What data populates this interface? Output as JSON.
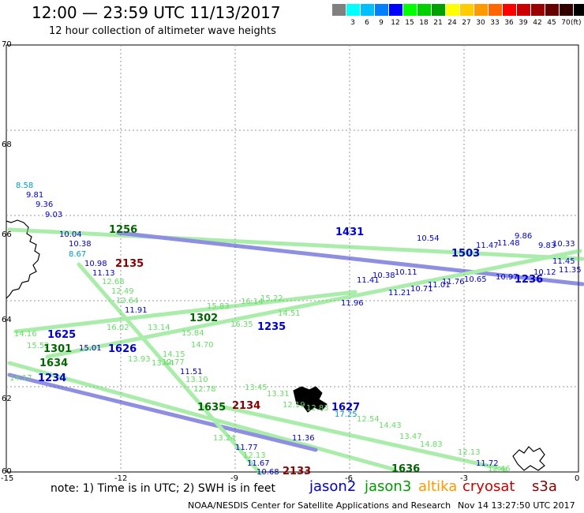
{
  "title": "12:00 — 23:59 UTC 11/13/2017",
  "subtitle": "12 hour collection of altimeter wave heights",
  "scale": {
    "colors": [
      "#808080",
      "#00ffff",
      "#00bfff",
      "#0080ff",
      "#0000ff",
      "#00ff00",
      "#00d000",
      "#00a000",
      "#ffff00",
      "#ffcc00",
      "#ff9900",
      "#ff6600",
      "#ff0000",
      "#cc0000",
      "#990000",
      "#660000",
      "#330000",
      "#000000"
    ],
    "labels": [
      "3",
      "6",
      "9",
      "12",
      "15",
      "18",
      "21",
      "24",
      "27",
      "30",
      "33",
      "36",
      "39",
      "42",
      "45",
      "70"
    ],
    "unit": "(ft)"
  },
  "axes": {
    "lon_ticks": [
      "-15",
      "-12",
      "-9",
      "-6",
      "-3",
      "0"
    ],
    "lat_ticks": [
      "70",
      "68",
      "66",
      "64",
      "62",
      "60"
    ]
  },
  "note": "note: 1) Time is in UTC; 2) SWH is in feet",
  "legend": [
    {
      "name": "jason2",
      "color": "#0000cc"
    },
    {
      "name": "jason3",
      "color": "#009900"
    },
    {
      "name": "altika",
      "color": "#ff9900"
    },
    {
      "name": "cryosat",
      "color": "#cc0000"
    },
    {
      "name": "s3a",
      "color": "#880000"
    }
  ],
  "footer": "NOAA/NESDIS Center for Satellite Applications and Research",
  "footer_time": "Nov 14 13:27:50 UTC 2017",
  "track_labels": [
    {
      "text": "1431",
      "color": "#0000cc"
    },
    {
      "text": "1503",
      "color": "#0000cc"
    },
    {
      "text": "1236",
      "color": "#0000cc"
    },
    {
      "text": "1235",
      "color": "#0000cc"
    },
    {
      "text": "1302",
      "color": "#006600"
    },
    {
      "text": "1625",
      "color": "#0000cc"
    },
    {
      "text": "1301",
      "color": "#006600"
    },
    {
      "text": "1626",
      "color": "#0000cc"
    },
    {
      "text": "1634",
      "color": "#006600"
    },
    {
      "text": "1234",
      "color": "#0000cc"
    },
    {
      "text": "1635",
      "color": "#006600"
    },
    {
      "text": "2134",
      "color": "#880000"
    },
    {
      "text": "1627",
      "color": "#0000cc"
    },
    {
      "text": "2135",
      "color": "#880000"
    },
    {
      "text": "2133",
      "color": "#880000"
    },
    {
      "text": "1636",
      "color": "#006600"
    },
    {
      "text": "1256",
      "color": "#006600"
    }
  ],
  "values": [
    {
      "text": "8.58",
      "color": "#0099cc"
    },
    {
      "text": "9.81",
      "color": "#0000cc"
    },
    {
      "text": "9.36",
      "color": "#0000cc"
    },
    {
      "text": "9.03",
      "color": "#0000cc"
    },
    {
      "text": "10.04",
      "color": "#0000cc"
    },
    {
      "text": "10.38",
      "color": "#0000cc"
    },
    {
      "text": "8.67",
      "color": "#0099cc"
    },
    {
      "text": "10.98",
      "color": "#0000cc"
    },
    {
      "text": "11.13",
      "color": "#0000cc"
    },
    {
      "text": "12.68",
      "color": "#66dd66"
    },
    {
      "text": "12.49",
      "color": "#66dd66"
    },
    {
      "text": "12.64",
      "color": "#66dd66"
    },
    {
      "text": "11.91",
      "color": "#0000cc"
    },
    {
      "text": "16.02",
      "color": "#66dd66"
    },
    {
      "text": "15.84",
      "color": "#66dd66"
    },
    {
      "text": "14.16",
      "color": "#66dd66"
    },
    {
      "text": "15.52",
      "color": "#66dd66"
    },
    {
      "text": "15.01",
      "color": "#0000cc"
    },
    {
      "text": "13.14",
      "color": "#66dd66"
    },
    {
      "text": "14.15",
      "color": "#66dd66"
    },
    {
      "text": "14.17",
      "color": "#66dd66"
    },
    {
      "text": "11.51",
      "color": "#0000cc"
    },
    {
      "text": "12.77",
      "color": "#66dd66"
    },
    {
      "text": "12.78",
      "color": "#66dd66"
    },
    {
      "text": "13.24",
      "color": "#66dd66"
    },
    {
      "text": "11.77",
      "color": "#0000cc"
    },
    {
      "text": "12.13",
      "color": "#66dd66"
    },
    {
      "text": "11.67",
      "color": "#0000cc"
    },
    {
      "text": "10.68",
      "color": "#0000cc"
    },
    {
      "text": "11.72",
      "color": "#0000cc"
    },
    {
      "text": "12.46",
      "color": "#66dd66"
    },
    {
      "text": "9.83",
      "color": "#0000cc"
    },
    {
      "text": "9.86",
      "color": "#0000cc"
    },
    {
      "text": "11.48",
      "color": "#0000cc"
    },
    {
      "text": "11.45",
      "color": "#0000cc"
    },
    {
      "text": "10.12",
      "color": "#0000cc"
    },
    {
      "text": "11.35",
      "color": "#0000cc"
    },
    {
      "text": "10.33",
      "color": "#0000cc"
    },
    {
      "text": "11.96",
      "color": "#0000cc"
    },
    {
      "text": "11.41",
      "color": "#0000cc"
    },
    {
      "text": "11.21",
      "color": "#0000cc"
    },
    {
      "text": "10.71",
      "color": "#0000cc"
    },
    {
      "text": "11.01",
      "color": "#0000cc"
    },
    {
      "text": "10.65",
      "color": "#0000cc"
    },
    {
      "text": "10.97",
      "color": "#0000cc"
    },
    {
      "text": "10.38",
      "color": "#0000cc"
    },
    {
      "text": "10.11",
      "color": "#0000cc"
    },
    {
      "text": "15.22",
      "color": "#66dd66"
    },
    {
      "text": "16.14",
      "color": "#66dd66"
    },
    {
      "text": "15.83",
      "color": "#66dd66"
    },
    {
      "text": "16.35",
      "color": "#66dd66"
    },
    {
      "text": "14.51",
      "color": "#66dd66"
    },
    {
      "text": "13.93",
      "color": "#66dd66"
    },
    {
      "text": "13.44",
      "color": "#66dd66"
    },
    {
      "text": "14.70",
      "color": "#66dd66"
    },
    {
      "text": "13.10",
      "color": "#66dd66"
    },
    {
      "text": "13.45",
      "color": "#66dd66"
    },
    {
      "text": "13.31",
      "color": "#66dd66"
    },
    {
      "text": "12.19",
      "color": "#66dd66"
    },
    {
      "text": "12.83",
      "color": "#66dd66"
    },
    {
      "text": "17.25",
      "color": "#0099cc"
    },
    {
      "text": "12.54",
      "color": "#66dd66"
    },
    {
      "text": "14.43",
      "color": "#66dd66"
    },
    {
      "text": "13.47",
      "color": "#66dd66"
    },
    {
      "text": "14.83",
      "color": "#66dd66"
    },
    {
      "text": "12.13",
      "color": "#66dd66"
    },
    {
      "text": "11.36",
      "color": "#0000cc"
    },
    {
      "text": "10.54",
      "color": "#0000cc"
    },
    {
      "text": "11.47",
      "color": "#0000cc"
    },
    {
      "text": "11.76",
      "color": "#0000cc"
    }
  ]
}
